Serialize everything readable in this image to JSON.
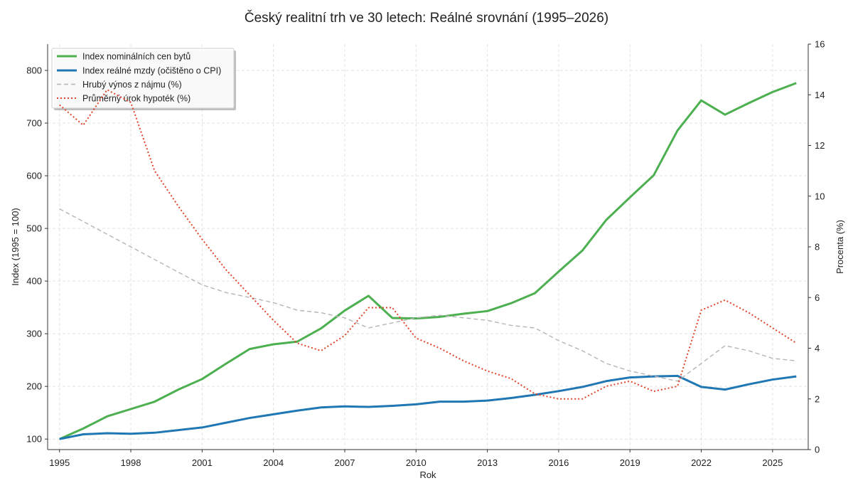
{
  "chart_data": {
    "type": "line",
    "title": "Český realitní trh ve 30 letech: Reálné srovnání (1995–2026)",
    "xlabel": "Rok",
    "ylabel_left": "Index (1995 = 100)",
    "ylabel_right": "Procenta (%)",
    "xlim": [
      1994.5,
      2026.5
    ],
    "ylim_left": [
      80,
      850
    ],
    "ylim_right": [
      0,
      16
    ],
    "grid": true,
    "legend_position": "top-left",
    "x_ticks": [
      1995,
      1998,
      2001,
      2004,
      2007,
      2010,
      2013,
      2016,
      2019,
      2022,
      2025
    ],
    "y_ticks_left": [
      100,
      200,
      300,
      400,
      500,
      600,
      700,
      800
    ],
    "y_ticks_right": [
      0,
      2,
      4,
      6,
      8,
      10,
      12,
      14,
      16
    ],
    "x": [
      1995,
      1996,
      1997,
      1998,
      1999,
      2000,
      2001,
      2002,
      2003,
      2004,
      2005,
      2006,
      2007,
      2008,
      2009,
      2010,
      2011,
      2012,
      2013,
      2014,
      2015,
      2016,
      2017,
      2018,
      2019,
      2020,
      2021,
      2022,
      2023,
      2024,
      2025,
      2026
    ],
    "series": [
      {
        "name": "Index nominálních cen bytů",
        "color": "#4caf50",
        "secondary_axis": false,
        "values": [
          100,
          120,
          143,
          157,
          171,
          194,
          214,
          243,
          271,
          280,
          285,
          310,
          344,
          372,
          330,
          329,
          332,
          338,
          343,
          358,
          377,
          418,
          458,
          516,
          559,
          601,
          686,
          743,
          716,
          738,
          759,
          776
        ]
      },
      {
        "name": "Index reálné mzdy (očištěno o CPI)",
        "color": "#1f77b4",
        "secondary_axis": false,
        "values": [
          100,
          109,
          111,
          110,
          112,
          117,
          122,
          131,
          140,
          147,
          154,
          160,
          162,
          161,
          163,
          166,
          171,
          171,
          173,
          178,
          184,
          191,
          199,
          210,
          217,
          219,
          220,
          199,
          194,
          204,
          213,
          219
        ]
      },
      {
        "name": "Hrubý výnos z nájmu (%)",
        "color": "#b5b5b5",
        "secondary_axis": true,
        "values": [
          9.5,
          9.0,
          8.5,
          8.0,
          7.5,
          7.0,
          6.5,
          6.2,
          6.0,
          5.8,
          5.5,
          5.4,
          5.2,
          4.8,
          5.0,
          5.2,
          5.3,
          5.2,
          5.1,
          4.9,
          4.8,
          4.3,
          3.9,
          3.4,
          3.1,
          2.9,
          2.7,
          3.4,
          4.1,
          3.9,
          3.6,
          3.5
        ]
      },
      {
        "name": "Průměrný úrok hypoték (%)",
        "color": "#e0442a",
        "secondary_axis": true,
        "values": [
          13.6,
          12.8,
          14.2,
          13.7,
          11.0,
          9.6,
          8.3,
          7.1,
          6.1,
          5.1,
          4.2,
          3.9,
          4.5,
          5.6,
          5.6,
          4.4,
          4.0,
          3.5,
          3.1,
          2.8,
          2.2,
          2.0,
          2.0,
          2.5,
          2.7,
          2.3,
          2.5,
          5.5,
          5.9,
          5.4,
          4.8,
          4.2
        ]
      }
    ]
  }
}
